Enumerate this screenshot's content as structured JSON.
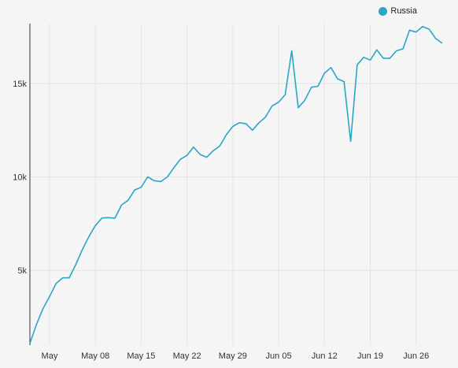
{
  "chart_data": {
    "type": "line",
    "title": "",
    "xlabel": "",
    "ylabel": "",
    "grid": true,
    "legend_position": "top-right",
    "x_ticks": [
      "May",
      "May 08",
      "May 15",
      "May 22",
      "May 29",
      "Jun 05",
      "Jun 12",
      "Jun 19",
      "Jun 26"
    ],
    "y_ticks": [
      "5k",
      "10k",
      "15k"
    ],
    "y_tick_values": [
      5000,
      10000,
      15000
    ],
    "ylim": [
      1000,
      18200
    ],
    "x": [
      "2020-04-28",
      "2020-04-29",
      "2020-04-30",
      "2020-05-01",
      "2020-05-02",
      "2020-05-03",
      "2020-05-04",
      "2020-05-05",
      "2020-05-06",
      "2020-05-07",
      "2020-05-08",
      "2020-05-09",
      "2020-05-10",
      "2020-05-11",
      "2020-05-12",
      "2020-05-13",
      "2020-05-14",
      "2020-05-15",
      "2020-05-16",
      "2020-05-17",
      "2020-05-18",
      "2020-05-19",
      "2020-05-20",
      "2020-05-21",
      "2020-05-22",
      "2020-05-23",
      "2020-05-24",
      "2020-05-25",
      "2020-05-26",
      "2020-05-27",
      "2020-05-28",
      "2020-05-29",
      "2020-05-30",
      "2020-05-31",
      "2020-06-01",
      "2020-06-02",
      "2020-06-03",
      "2020-06-04",
      "2020-06-05",
      "2020-06-06",
      "2020-06-07",
      "2020-06-08",
      "2020-06-09",
      "2020-06-10",
      "2020-06-11",
      "2020-06-12",
      "2020-06-13",
      "2020-06-14",
      "2020-06-15",
      "2020-06-16",
      "2020-06-17",
      "2020-06-18",
      "2020-06-19",
      "2020-06-20",
      "2020-06-21",
      "2020-06-22",
      "2020-06-23",
      "2020-06-24",
      "2020-06-25",
      "2020-06-26",
      "2020-06-27",
      "2020-06-28"
    ],
    "series": [
      {
        "name": "Russia",
        "color": "#2aa7c4",
        "values": [
          1100,
          2100,
          2950,
          3600,
          4300,
          4600,
          4600,
          5300,
          6100,
          6800,
          7400,
          7800,
          7820,
          7790,
          8500,
          8750,
          9300,
          9450,
          10000,
          9800,
          9750,
          10000,
          10500,
          10950,
          11150,
          11600,
          11200,
          11050,
          11400,
          11650,
          12250,
          12700,
          12900,
          12850,
          12500,
          12900,
          13200,
          13800,
          14000,
          14400,
          16750,
          13700,
          14100,
          14800,
          14850,
          15550,
          15850,
          15250,
          15100,
          11900,
          16000,
          16400,
          16250,
          16800,
          16350,
          16350,
          16750,
          16850,
          17850,
          17750,
          18050,
          17900
        ]
      }
    ],
    "tail_values": [
      17400,
      17150
    ]
  }
}
